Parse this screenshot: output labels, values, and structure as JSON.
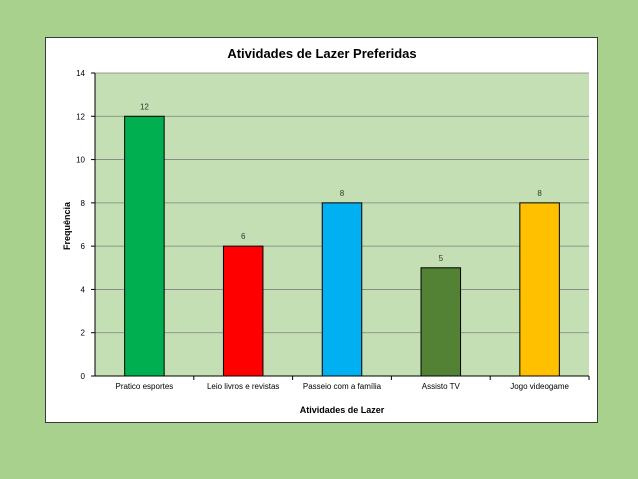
{
  "chart_data": {
    "type": "bar",
    "title": "Atividades de Lazer Preferidas",
    "xlabel": "Atividades de Lazer",
    "ylabel": "Frequência",
    "categories": [
      "Pratico esportes",
      "Leio livros e revistas",
      "Passeio com a família",
      "Assisto TV",
      "Jogo videogame"
    ],
    "values": [
      12,
      6,
      8,
      5,
      8
    ],
    "bar_colors": [
      "#00b050",
      "#ff0000",
      "#00b0f0",
      "#548235",
      "#ffc000"
    ],
    "ylim": [
      0,
      14
    ],
    "yticks": [
      0,
      2,
      4,
      6,
      8,
      10,
      12,
      14
    ],
    "grid": true,
    "legend": "none",
    "plot_background": "#c5dfb4",
    "page_background": "#a9d18e"
  }
}
